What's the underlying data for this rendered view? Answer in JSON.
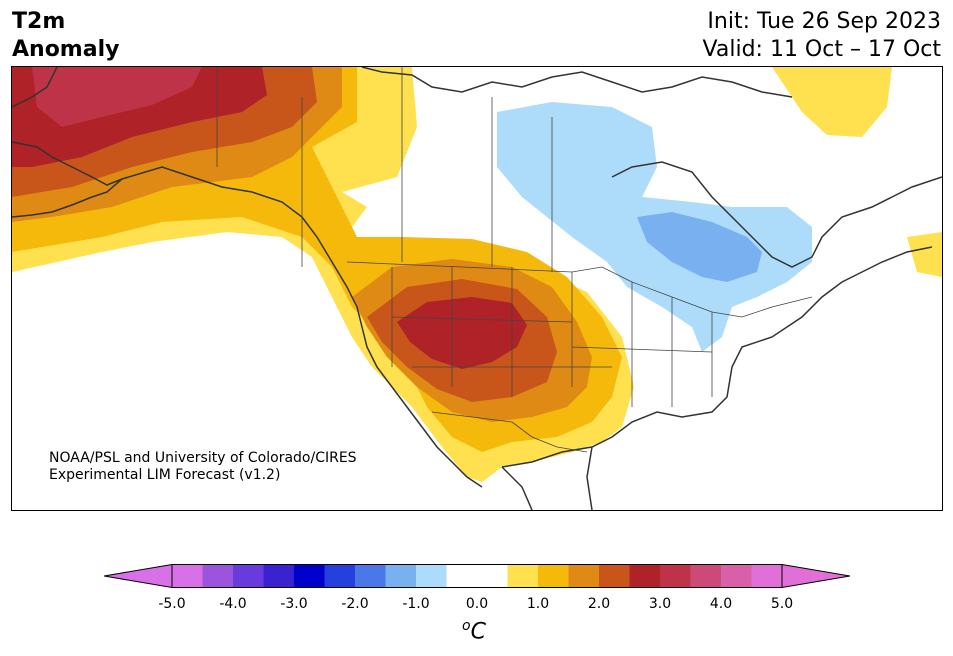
{
  "header": {
    "variable": "T2m",
    "subtitle": "Anomaly",
    "init": "Init: Tue 26 Sep 2023",
    "valid": "Valid: 11 Oct – 17 Oct"
  },
  "credit": {
    "line1": "NOAA/PSL and University of Colorado/CIRES",
    "line2": "Experimental LIM Forecast (v1.2)"
  },
  "colorbar": {
    "unit_sup": "o",
    "unit": "C",
    "ticks": [
      "-5.0",
      "-4.0",
      "-3.0",
      "-2.0",
      "-1.0",
      "0.0",
      "1.0",
      "2.0",
      "3.0",
      "4.0",
      "5.0"
    ],
    "colors": [
      "#d870e8",
      "#9b55dd",
      "#6a3bdb",
      "#3b22d0",
      "#0000cc",
      "#2540dd",
      "#4a78e8",
      "#78b0f0",
      "#addcfb",
      "#ffffff",
      "#ffffff",
      "#ffe14f",
      "#f5b90c",
      "#de8a14",
      "#c8561b",
      "#ae2228",
      "#be3348",
      "#cc4a78",
      "#d860a8",
      "#e070d8"
    ],
    "under_color": "#d870e8",
    "over_color": "#e070d8"
  },
  "map": {
    "region": "North America",
    "fills": {
      "yellow": "#ffe14f",
      "gold": "#f5b90c",
      "orange": "#de8a14",
      "rust": "#c8561b",
      "red": "#ae2228",
      "crimson": "#be3348",
      "light_blue": "#addcfb",
      "blue": "#78b0f0"
    }
  }
}
